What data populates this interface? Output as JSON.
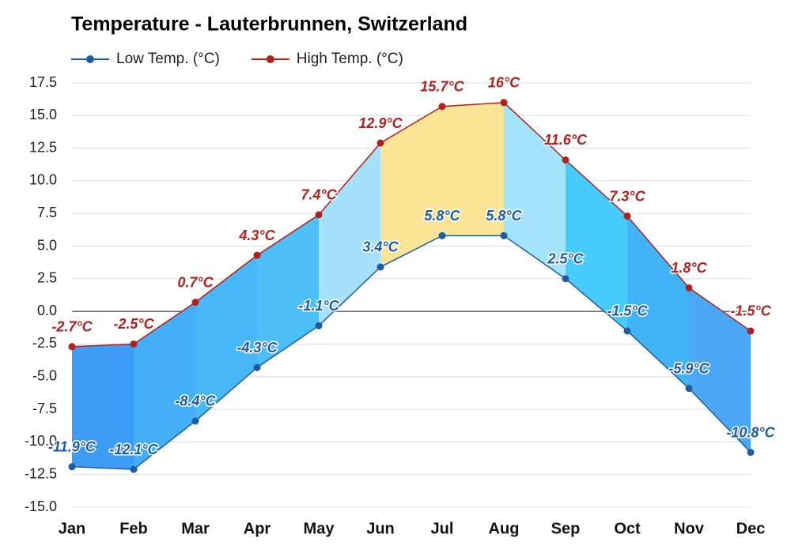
{
  "chart_data": {
    "type": "range-area",
    "title": "Temperature - Lauterbrunnen, Switzerland",
    "categories": [
      "Jan",
      "Feb",
      "Mar",
      "Apr",
      "May",
      "Jun",
      "Jul",
      "Aug",
      "Sep",
      "Oct",
      "Nov",
      "Dec"
    ],
    "series": [
      {
        "name": "Low Temp. (°C)",
        "color": "#1d5ca3",
        "values": [
          -11.9,
          -12.1,
          -8.4,
          -4.3,
          -1.1,
          3.4,
          5.8,
          5.8,
          2.5,
          -1.5,
          -5.9,
          -10.8
        ],
        "value_labels": [
          "-11.9°C",
          "-12.1°C",
          "-8.4°C",
          "-4.3°C",
          "-1.1°C",
          "3.4°C",
          "5.8°C",
          "5.8°C",
          "2.5°C",
          "-1.5°C",
          "-5.9°C",
          "-10.8°C"
        ]
      },
      {
        "name": "High Temp. (°C)",
        "color": "#b0201e",
        "values": [
          -2.7,
          -2.5,
          0.7,
          4.3,
          7.4,
          12.9,
          15.7,
          16,
          11.6,
          7.3,
          1.8,
          -1.5
        ],
        "value_labels": [
          "-2.7°C",
          "-2.5°C",
          "0.7°C",
          "4.3°C",
          "7.4°C",
          "12.9°C",
          "15.7°C",
          "16°C",
          "11.6°C",
          "7.3°C",
          "1.8°C",
          "-1.5°C"
        ]
      }
    ],
    "band_colors": [
      "#3d9cf5",
      "#42aff7",
      "#48b8f8",
      "#4cbff9",
      "#a6e1fb",
      "#fce497",
      "#fce497",
      "#a3e3fb",
      "#47cbfa",
      "#41b4f7",
      "#4aa8f6"
    ],
    "ylim": [
      -15,
      17.5
    ],
    "yticks": [
      {
        "value": -15,
        "label": "-15.0"
      },
      -12.5,
      {
        "value": -10,
        "label": "-10.0"
      },
      -7.5,
      {
        "value": -5,
        "label": "-5.0"
      },
      -2.5,
      {
        "value": 0,
        "label": "0.0"
      },
      2.5,
      {
        "value": 5,
        "label": "5.0"
      },
      7.5,
      {
        "value": 10,
        "label": "10.0"
      },
      12.5,
      {
        "value": 15,
        "label": "15.0"
      },
      17.5
    ],
    "grid": true
  }
}
